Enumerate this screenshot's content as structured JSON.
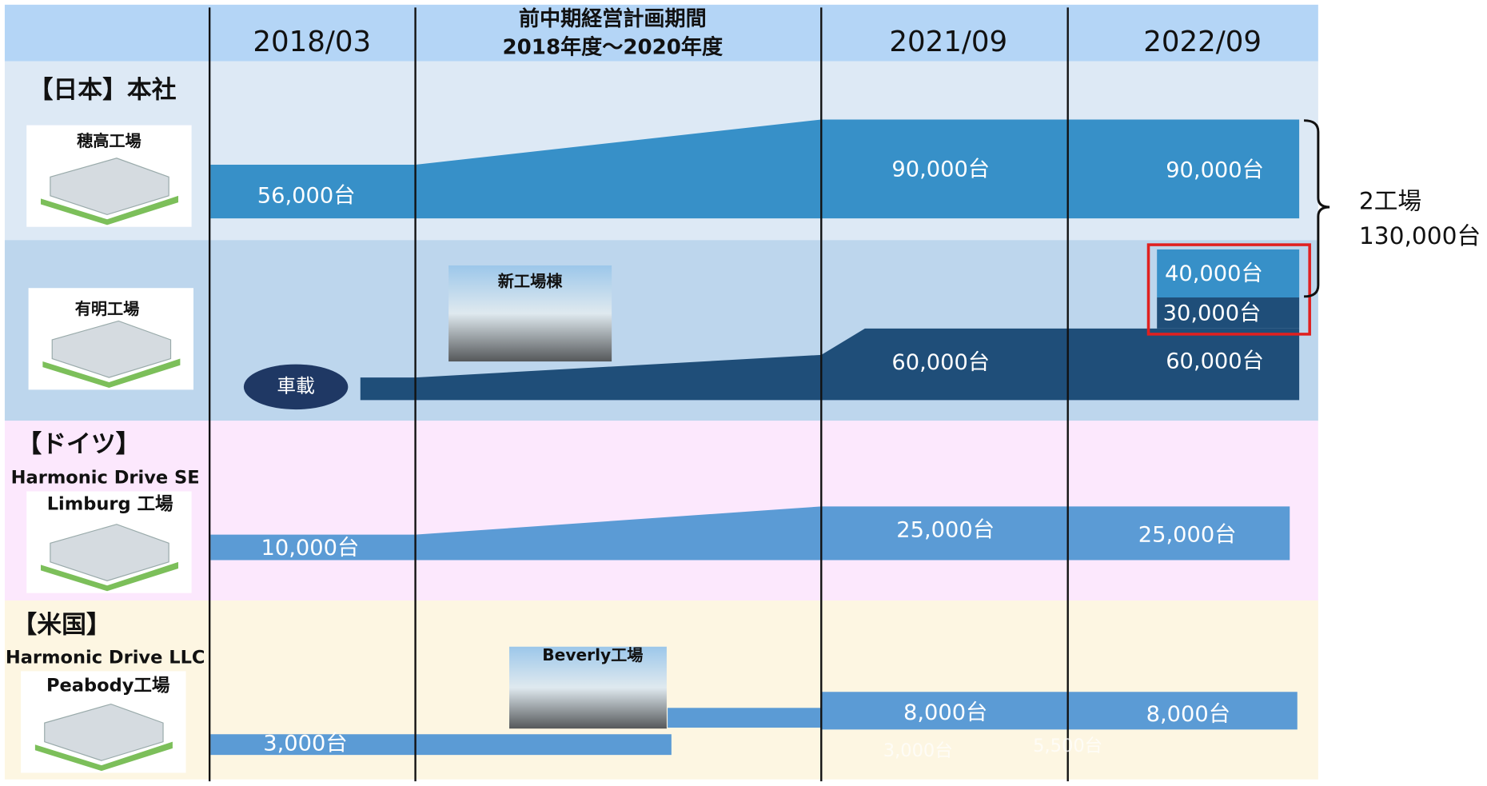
{
  "header": {
    "col_2018": "2018/03",
    "period_title": "前中期経営計画期間",
    "period_range": "2018年度～2020年度",
    "col_2021": "2021/09",
    "col_2022": "2022/09"
  },
  "japan": {
    "region": "【日本】本社",
    "hotaka": {
      "name": "穂高工場",
      "v2018": "56,000台",
      "v2021": "90,000台",
      "v2022": "90,000台"
    },
    "ariake": {
      "name": "有明工場",
      "segment": "車載",
      "new_building": "新工場棟",
      "v2021": "60,000台",
      "v2022": "60,000台",
      "add_a": "40,000台",
      "add_b": "30,000台"
    },
    "total_label": "2工場",
    "total_value": "130,000台"
  },
  "germany": {
    "region": "【ドイツ】",
    "company": "Harmonic Drive SE",
    "factory": "Limburg 工場",
    "v2018": "10,000台",
    "v2021": "25,000台",
    "v2022": "25,000台"
  },
  "usa": {
    "region": "【米国】",
    "company": "Harmonic Drive LLC",
    "factory": "Peabody工場",
    "new_factory": "Beverly工場",
    "v2018": "3,000台",
    "v2021": "8,000台",
    "v2022": "8,000台",
    "faint_a": "3,000台",
    "faint_b": "5,500台"
  }
}
